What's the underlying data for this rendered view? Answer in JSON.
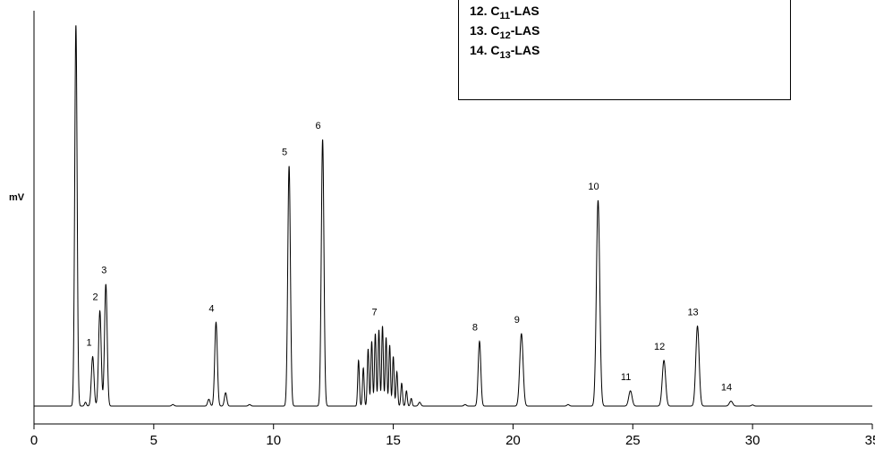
{
  "chart_data": {
    "type": "line",
    "ylabel": "mV",
    "xlabel": "",
    "xlim": [
      0,
      35
    ],
    "x_ticks": [
      "0",
      "5",
      "10",
      "15",
      "20",
      "25",
      "30",
      "35"
    ],
    "colors": {
      "line": "#000000",
      "axis": "#000000"
    },
    "grid": false,
    "peaks": [
      {
        "label": "1",
        "x": 2.45,
        "height": 0.13
      },
      {
        "label": "2",
        "x": 2.75,
        "height": 0.25
      },
      {
        "label": "3",
        "x": 3.0,
        "height": 0.32
      },
      {
        "label": "4",
        "x": 7.6,
        "height": 0.22
      },
      {
        "label": "5",
        "x": 10.65,
        "height": 0.63
      },
      {
        "label": "6",
        "x": 12.05,
        "height": 0.7
      },
      {
        "label": "7",
        "x": 14.4,
        "height": 0.21
      },
      {
        "label": "8",
        "x": 18.6,
        "height": 0.17
      },
      {
        "label": "9",
        "x": 20.35,
        "height": 0.19
      },
      {
        "label": "10",
        "x": 23.55,
        "height": 0.54
      },
      {
        "label": "11",
        "x": 24.9,
        "height": 0.04
      },
      {
        "label": "12",
        "x": 26.3,
        "height": 0.12
      },
      {
        "label": "13",
        "x": 27.7,
        "height": 0.21
      },
      {
        "label": "14",
        "x": 29.1,
        "height": 0.013
      }
    ],
    "unlabeled_peaks": [
      {
        "x": 1.75,
        "height": 1.0
      }
    ]
  },
  "legend": {
    "items": [
      {
        "prefix": "12. C",
        "sub": "11",
        "suffix": "-LAS"
      },
      {
        "prefix": "13. C",
        "sub": "12",
        "suffix": "-LAS"
      },
      {
        "prefix": "14. C",
        "sub": "13",
        "suffix": "-LAS"
      }
    ]
  }
}
